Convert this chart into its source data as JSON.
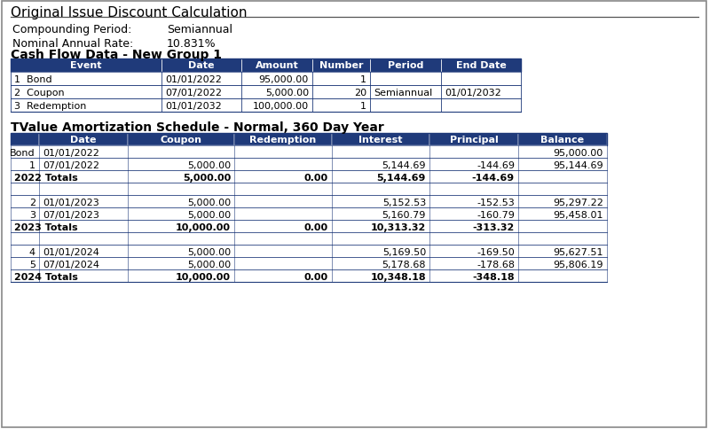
{
  "title": "Original Issue Discount Calculation",
  "compounding_period_label": "Compounding Period:",
  "compounding_period_value": "Semiannual",
  "nominal_rate_label": "Nominal Annual Rate:",
  "nominal_rate_value": "10.831%",
  "cashflow_title": "Cash Flow Data - New Group 1",
  "cashflow_headers": [
    "Event",
    "Date",
    "Amount",
    "Number",
    "Period",
    "End Date"
  ],
  "cashflow_rows": [
    [
      "1  Bond",
      "01/01/2022",
      "95,000.00",
      "1",
      "",
      ""
    ],
    [
      "2  Coupon",
      "07/01/2022",
      "5,000.00",
      "20",
      "Semiannual",
      "01/01/2032"
    ],
    [
      "3  Redemption",
      "01/01/2032",
      "100,000.00",
      "1",
      "",
      ""
    ]
  ],
  "amort_title": "TValue Amortization Schedule - Normal, 360 Day Year",
  "amort_headers": [
    "Date",
    "Coupon",
    "Redemption",
    "Interest",
    "Principal",
    "Balance"
  ],
  "amort_rows": [
    {
      "num": "Bond",
      "date": "01/01/2022",
      "coupon": "",
      "redemption": "",
      "interest": "",
      "principal": "",
      "balance": "95,000.00",
      "is_total": false,
      "is_blank": false
    },
    {
      "num": "1",
      "date": "07/01/2022",
      "coupon": "5,000.00",
      "redemption": "",
      "interest": "5,144.69",
      "principal": "-144.69",
      "balance": "95,144.69",
      "is_total": false,
      "is_blank": false
    },
    {
      "num": "",
      "date": "2022 Totals",
      "coupon": "5,000.00",
      "redemption": "0.00",
      "interest": "5,144.69",
      "principal": "-144.69",
      "balance": "",
      "is_total": true,
      "is_blank": false
    },
    {
      "num": "",
      "date": "",
      "coupon": "",
      "redemption": "",
      "interest": "",
      "principal": "",
      "balance": "",
      "is_total": false,
      "is_blank": true
    },
    {
      "num": "2",
      "date": "01/01/2023",
      "coupon": "5,000.00",
      "redemption": "",
      "interest": "5,152.53",
      "principal": "-152.53",
      "balance": "95,297.22",
      "is_total": false,
      "is_blank": false
    },
    {
      "num": "3",
      "date": "07/01/2023",
      "coupon": "5,000.00",
      "redemption": "",
      "interest": "5,160.79",
      "principal": "-160.79",
      "balance": "95,458.01",
      "is_total": false,
      "is_blank": false
    },
    {
      "num": "",
      "date": "2023 Totals",
      "coupon": "10,000.00",
      "redemption": "0.00",
      "interest": "10,313.32",
      "principal": "-313.32",
      "balance": "",
      "is_total": true,
      "is_blank": false
    },
    {
      "num": "",
      "date": "",
      "coupon": "",
      "redemption": "",
      "interest": "",
      "principal": "",
      "balance": "",
      "is_total": false,
      "is_blank": true
    },
    {
      "num": "4",
      "date": "01/01/2024",
      "coupon": "5,000.00",
      "redemption": "",
      "interest": "5,169.50",
      "principal": "-169.50",
      "balance": "95,627.51",
      "is_total": false,
      "is_blank": false
    },
    {
      "num": "5",
      "date": "07/01/2024",
      "coupon": "5,000.00",
      "redemption": "",
      "interest": "5,178.68",
      "principal": "-178.68",
      "balance": "95,806.19",
      "is_total": false,
      "is_blank": false
    },
    {
      "num": "",
      "date": "2024 Totals",
      "coupon": "10,000.00",
      "redemption": "0.00",
      "interest": "10,348.18",
      "principal": "-348.18",
      "balance": "",
      "is_total": true,
      "is_blank": false
    }
  ],
  "header_bg": "#1F3A7A",
  "header_fg": "#FFFFFF",
  "border_color": "#1F3A7A",
  "bg_color": "#FFFFFF",
  "title_fontsize": 11,
  "section_title_fontsize": 10,
  "body_fontsize": 8,
  "header_fontsize": 8
}
